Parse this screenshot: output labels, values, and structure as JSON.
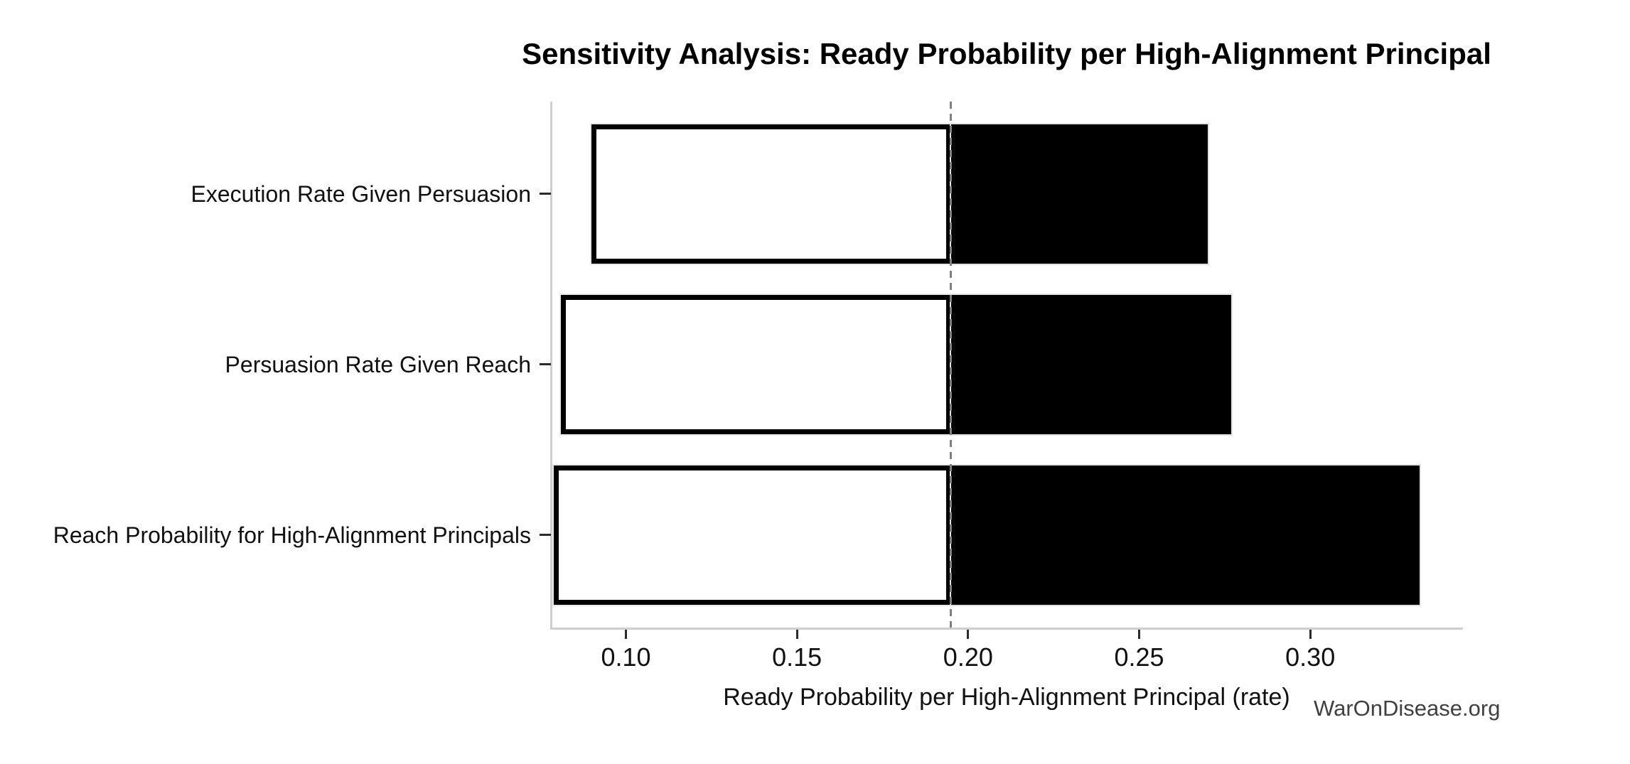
{
  "chart_data": {
    "type": "bar",
    "subtype": "tornado-sensitivity",
    "orientation": "horizontal",
    "title": "Sensitivity Analysis: Ready Probability per High-Alignment Principal",
    "xlabel": "Ready Probability per High-Alignment Principal (rate)",
    "ylabel": "",
    "watermark": "WarOnDisease.org",
    "grid": false,
    "legend": null,
    "baseline": 0.195,
    "xlim": [
      0.0785,
      0.344
    ],
    "x_ticks": [
      0.1,
      0.15,
      0.2,
      0.25,
      0.3
    ],
    "x_tick_labels": [
      "0.10",
      "0.15",
      "0.20",
      "0.25",
      "0.30"
    ],
    "categories": [
      "Execution Rate Given Persuasion",
      "Persuasion Rate Given Reach",
      "Reach Probability for High-Alignment Principals"
    ],
    "bars": [
      {
        "label": "Execution Rate Given Persuasion",
        "low": 0.09,
        "high": 0.27
      },
      {
        "label": "Persuasion Rate Given Reach",
        "low": 0.081,
        "high": 0.277
      },
      {
        "label": "Reach Probability for High-Alignment Principals",
        "low": 0.079,
        "high": 0.332
      }
    ],
    "colors": {
      "low_fill": "#ffffff",
      "low_edge": "#000000",
      "high_fill": "#000000",
      "bar_outline": "#e2e2e2",
      "baseline_line": "#7f7f7f",
      "spine": "#cfcfcf",
      "tick": "#2b2b2b",
      "text": "#111111",
      "watermark_text": "#404040"
    }
  }
}
